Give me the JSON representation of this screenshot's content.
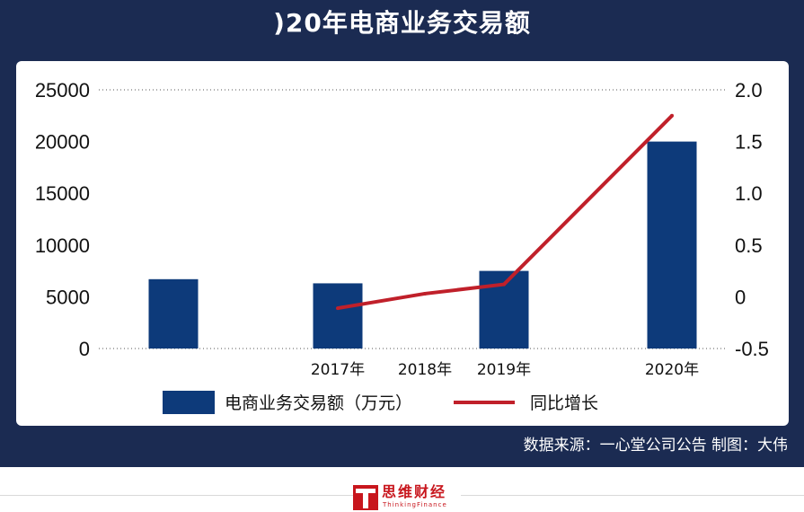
{
  "title": ")20年电商业务交易额",
  "source": "数据来源：一心堂公司公告    制图：大伟",
  "brand": {
    "name": "思维财经",
    "sub": "ThinkingFinance"
  },
  "colors": {
    "frame": "#1b2b52",
    "bar": "#0d3a7a",
    "line": "#c0202a"
  },
  "chart_data": {
    "type": "bar",
    "categories": [
      "",
      "2017年",
      "2018年",
      "2019年",
      "2020年"
    ],
    "series": [
      {
        "name": "电商业务交易额（万元）",
        "type": "bar",
        "axis": "left",
        "values": [
          6700,
          6300,
          null,
          7500,
          20000
        ]
      },
      {
        "name": "同比增长",
        "type": "line",
        "axis": "right",
        "values": [
          null,
          -0.11,
          0.03,
          0.12,
          1.75
        ]
      }
    ],
    "ylim": [
      0,
      25000
    ],
    "y_ticks": [
      "25000",
      "20000",
      "15000",
      "10000",
      "5000",
      "0"
    ],
    "y2lim": [
      -0.5,
      2.0
    ],
    "y2_ticks": [
      "2.0",
      "1.5",
      "1.0",
      "0.5",
      "0",
      "-0.5"
    ],
    "grid": "dotted-top-and-bottom",
    "legend": "bottom"
  }
}
